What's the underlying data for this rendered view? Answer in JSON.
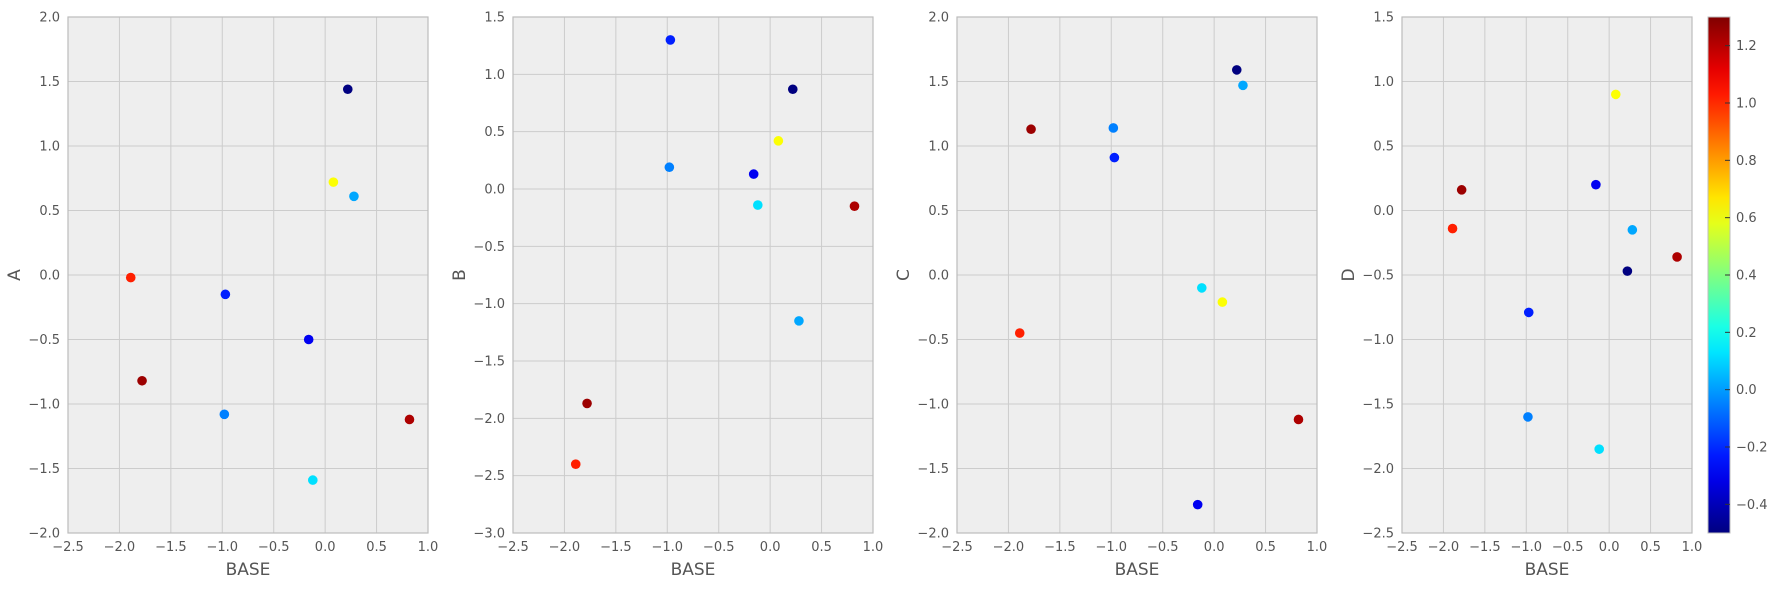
{
  "chart_data": [
    {
      "type": "scatter",
      "xlabel": "BASE",
      "ylabel": "A",
      "xlim": [
        -2.5,
        1.0
      ],
      "ylim": [
        -2.0,
        2.0
      ],
      "xticks": [
        -2.5,
        -2.0,
        -1.5,
        -1.0,
        -0.5,
        0.0,
        0.5,
        1.0
      ],
      "xtick_labels": [
        "−2.5",
        "−2.0",
        "−1.5",
        "−1.0",
        "−0.5",
        "0.0",
        "0.5",
        "1.0"
      ],
      "yticks": [
        -2.0,
        -1.5,
        -1.0,
        -0.5,
        0.0,
        0.5,
        1.0,
        1.5,
        2.0
      ],
      "ytick_labels": [
        "−2.0",
        "−1.5",
        "−1.0",
        "−0.5",
        "0.0",
        "0.5",
        "1.0",
        "1.5",
        "2.0"
      ],
      "grid": true,
      "points": [
        {
          "x": -1.89,
          "y": -0.02,
          "c": 1.02
        },
        {
          "x": -1.78,
          "y": -0.82,
          "c": 1.25
        },
        {
          "x": -0.97,
          "y": -0.15,
          "c": -0.22
        },
        {
          "x": -0.98,
          "y": -1.08,
          "c": -0.05
        },
        {
          "x": -0.16,
          "y": -0.5,
          "c": -0.3
        },
        {
          "x": -0.12,
          "y": -1.59,
          "c": 0.12
        },
        {
          "x": 0.08,
          "y": 0.72,
          "c": 0.62
        },
        {
          "x": 0.22,
          "y": 1.44,
          "c": -0.5
        },
        {
          "x": 0.28,
          "y": 0.61,
          "c": 0.02
        },
        {
          "x": 0.82,
          "y": -1.12,
          "c": 1.22
        }
      ]
    },
    {
      "type": "scatter",
      "xlabel": "BASE",
      "ylabel": "B",
      "xlim": [
        -2.5,
        1.0
      ],
      "ylim": [
        -3.0,
        1.5
      ],
      "xticks": [
        -2.5,
        -2.0,
        -1.5,
        -1.0,
        -0.5,
        0.0,
        0.5,
        1.0
      ],
      "xtick_labels": [
        "−2.5",
        "−2.0",
        "−1.5",
        "−1.0",
        "−0.5",
        "0.0",
        "0.5",
        "1.0"
      ],
      "yticks": [
        -3.0,
        -2.5,
        -2.0,
        -1.5,
        -1.0,
        -0.5,
        0.0,
        0.5,
        1.0,
        1.5
      ],
      "ytick_labels": [
        "−3.0",
        "−2.5",
        "−2.0",
        "−1.5",
        "−1.0",
        "−0.5",
        "0.0",
        "0.5",
        "1.0",
        "1.5"
      ],
      "grid": true,
      "points": [
        {
          "x": -1.89,
          "y": -2.4,
          "c": 1.02
        },
        {
          "x": -1.78,
          "y": -1.87,
          "c": 1.25
        },
        {
          "x": -0.97,
          "y": 1.3,
          "c": -0.22
        },
        {
          "x": -0.98,
          "y": 0.19,
          "c": -0.05
        },
        {
          "x": -0.16,
          "y": 0.13,
          "c": -0.3
        },
        {
          "x": -0.12,
          "y": -0.14,
          "c": 0.12
        },
        {
          "x": 0.08,
          "y": 0.42,
          "c": 0.62
        },
        {
          "x": 0.22,
          "y": 0.87,
          "c": -0.5
        },
        {
          "x": 0.28,
          "y": -1.15,
          "c": 0.02
        },
        {
          "x": 0.82,
          "y": -0.15,
          "c": 1.22
        }
      ]
    },
    {
      "type": "scatter",
      "xlabel": "BASE",
      "ylabel": "C",
      "xlim": [
        -2.5,
        1.0
      ],
      "ylim": [
        -2.0,
        2.0
      ],
      "xticks": [
        -2.5,
        -2.0,
        -1.5,
        -1.0,
        -0.5,
        0.0,
        0.5,
        1.0
      ],
      "xtick_labels": [
        "−2.5",
        "−2.0",
        "−1.5",
        "−1.0",
        "−0.5",
        "0.0",
        "0.5",
        "1.0"
      ],
      "yticks": [
        -2.0,
        -1.5,
        -1.0,
        -0.5,
        0.0,
        0.5,
        1.0,
        1.5,
        2.0
      ],
      "ytick_labels": [
        "−2.0",
        "−1.5",
        "−1.0",
        "−0.5",
        "0.0",
        "0.5",
        "1.0",
        "1.5",
        "2.0"
      ],
      "grid": true,
      "points": [
        {
          "x": -1.89,
          "y": -0.45,
          "c": 1.02
        },
        {
          "x": -1.78,
          "y": 1.13,
          "c": 1.25
        },
        {
          "x": -0.97,
          "y": 0.91,
          "c": -0.22
        },
        {
          "x": -0.98,
          "y": 1.14,
          "c": -0.05
        },
        {
          "x": -0.16,
          "y": -1.78,
          "c": -0.3
        },
        {
          "x": -0.12,
          "y": -0.1,
          "c": 0.12
        },
        {
          "x": 0.08,
          "y": -0.21,
          "c": 0.62
        },
        {
          "x": 0.22,
          "y": 1.59,
          "c": -0.5
        },
        {
          "x": 0.28,
          "y": 1.47,
          "c": 0.02
        },
        {
          "x": 0.82,
          "y": -1.12,
          "c": 1.22
        }
      ]
    },
    {
      "type": "scatter",
      "xlabel": "BASE",
      "ylabel": "D",
      "xlim": [
        -2.5,
        1.0
      ],
      "ylim": [
        -2.5,
        1.5
      ],
      "xticks": [
        -2.5,
        -2.0,
        -1.5,
        -1.0,
        -0.5,
        0.0,
        0.5,
        1.0
      ],
      "xtick_labels": [
        "−2.5",
        "−2.0",
        "−1.5",
        "−1.0",
        "−0.5",
        "0.0",
        "0.5",
        "1.0"
      ],
      "yticks": [
        -2.5,
        -2.0,
        -1.5,
        -1.0,
        -0.5,
        0.0,
        0.5,
        1.0,
        1.5
      ],
      "ytick_labels": [
        "−2.5",
        "−2.0",
        "−1.5",
        "−1.0",
        "−0.5",
        "0.0",
        "0.5",
        "1.0",
        "1.5"
      ],
      "grid": true,
      "points": [
        {
          "x": -1.89,
          "y": -0.14,
          "c": 1.02
        },
        {
          "x": -1.78,
          "y": 0.16,
          "c": 1.25
        },
        {
          "x": -0.97,
          "y": -0.79,
          "c": -0.22
        },
        {
          "x": -0.98,
          "y": -1.6,
          "c": -0.05
        },
        {
          "x": -0.16,
          "y": 0.2,
          "c": -0.3
        },
        {
          "x": -0.12,
          "y": -1.85,
          "c": 0.12
        },
        {
          "x": 0.08,
          "y": 0.9,
          "c": 0.62
        },
        {
          "x": 0.22,
          "y": -0.47,
          "c": -0.5
        },
        {
          "x": 0.28,
          "y": -0.15,
          "c": 0.02
        },
        {
          "x": 0.82,
          "y": -0.36,
          "c": 1.22
        }
      ]
    }
  ],
  "colorbar": {
    "colormap": "jet",
    "range": [
      -0.5,
      1.3
    ],
    "ticks": [
      -0.4,
      -0.2,
      0.0,
      0.2,
      0.4,
      0.6,
      0.8,
      1.0,
      1.2
    ],
    "tick_labels": [
      "−0.4",
      "−0.2",
      "0.0",
      "0.2",
      "0.4",
      "0.6",
      "0.8",
      "1.0",
      "1.2"
    ]
  },
  "colors": {
    "axes_background": "#eeeeee",
    "grid": "#cccccc",
    "spine": "#bcbcbc",
    "text": "#555555"
  }
}
